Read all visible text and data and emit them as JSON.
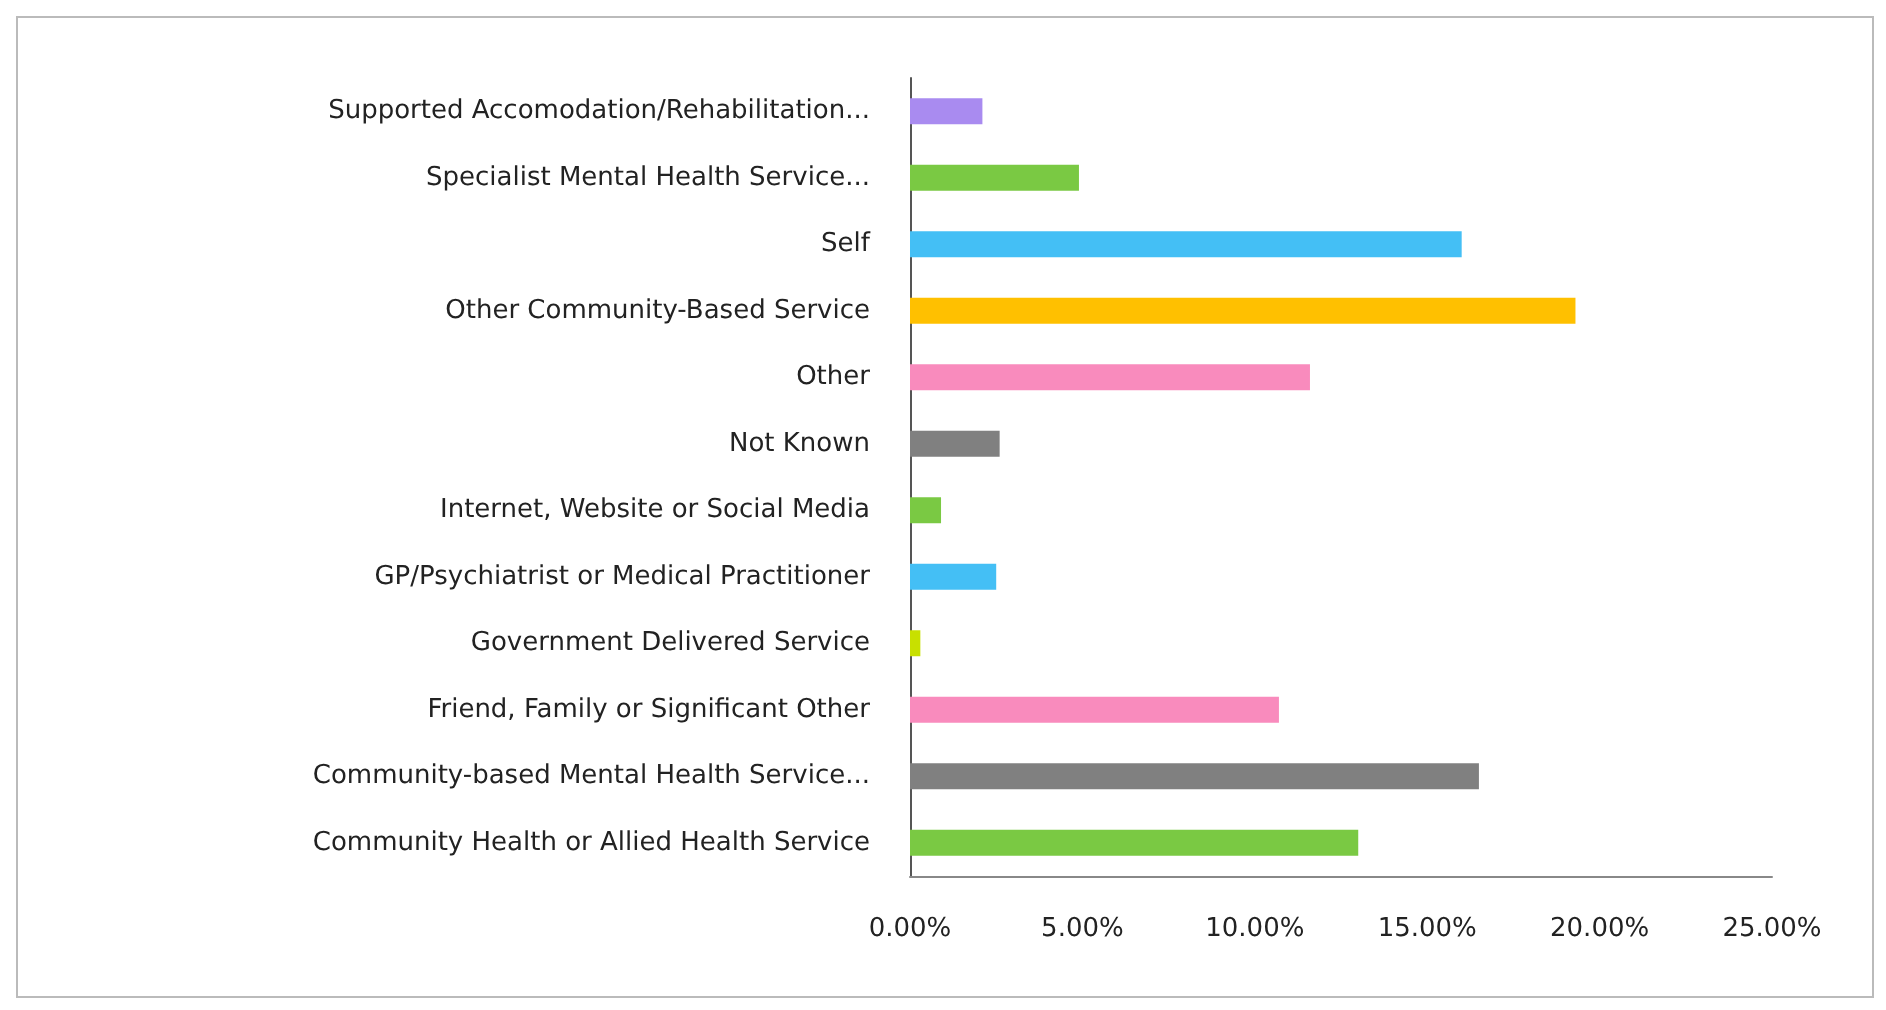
{
  "chart_data": {
    "type": "bar",
    "orientation": "horizontal",
    "categories": [
      "Supported Accomodation/Rehabilitation...",
      "Specialist Mental Health Service...",
      "Self",
      "Other Community-Based Service",
      "Other",
      "Not Known",
      "Internet, Website or Social Media",
      "GP/Psychiatrist or Medical Practitioner",
      "Government Delivered Service",
      "Friend, Family or Significant Other",
      "Community-based Mental Health Service...",
      "Community Health or Allied Health Service"
    ],
    "values": [
      2.1,
      4.9,
      16.0,
      19.3,
      11.6,
      2.6,
      0.9,
      2.5,
      0.3,
      10.7,
      16.5,
      13.0
    ],
    "colors": [
      "#a98bf0",
      "#7ac943",
      "#44bff5",
      "#ffc000",
      "#f98bbd",
      "#808080",
      "#7ac943",
      "#44bff5",
      "#c8e000",
      "#f98bbd",
      "#808080",
      "#7ac943"
    ],
    "xlim": [
      0,
      25
    ],
    "xticks": [
      {
        "value": 0,
        "label": "0.00%"
      },
      {
        "value": 5,
        "label": "5.00%"
      },
      {
        "value": 10,
        "label": "10.00%"
      },
      {
        "value": 15,
        "label": "15.00%"
      },
      {
        "value": 20,
        "label": "20.00%"
      },
      {
        "value": 25,
        "label": "25.00%"
      }
    ],
    "grid": false
  }
}
